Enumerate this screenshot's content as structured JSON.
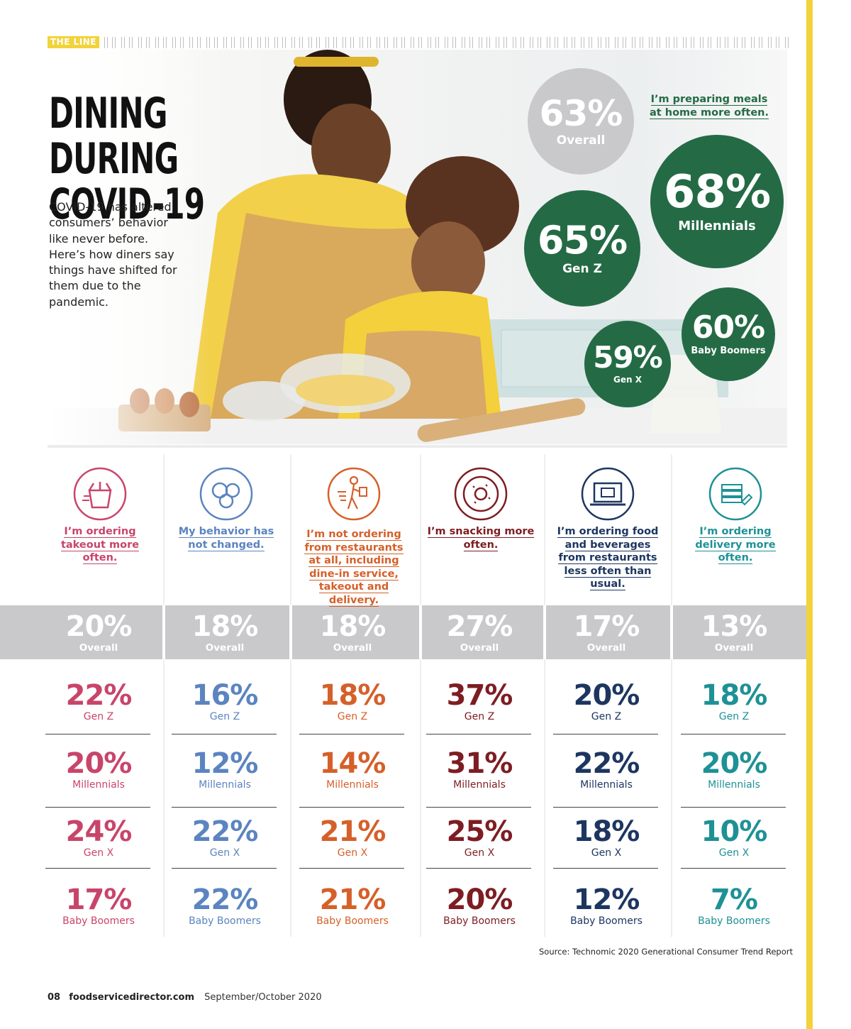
{
  "header": {
    "section_tag": "THE LINE"
  },
  "title": {
    "line1": "DINING DURING",
    "line2": "COVID-19"
  },
  "intro": "COVID-19 has altered consumers’ behavior like never before. Here’s how diners say things have shifted for them due to the pandemic.",
  "preparing_meals": {
    "caption": "I’m preparing meals at home more often.",
    "overall": {
      "pct": "63%",
      "label": "Overall"
    },
    "millennials": {
      "pct": "68%",
      "label": "Millennials"
    },
    "gen_z": {
      "pct": "65%",
      "label": "Gen Z"
    },
    "baby_boomers": {
      "pct": "60%",
      "label": "Baby Boomers"
    },
    "gen_x": {
      "pct": "59%",
      "label": "Gen X"
    }
  },
  "columns": [
    {
      "title": "I’m ordering takeout more often.",
      "icon": "takeout-box-icon",
      "color": "#c8456a",
      "overall": "20%",
      "overall_label": "Overall",
      "rows": [
        {
          "pct": "22%",
          "label": "Gen Z"
        },
        {
          "pct": "20%",
          "label": "Millennials"
        },
        {
          "pct": "24%",
          "label": "Gen X"
        },
        {
          "pct": "17%",
          "label": "Baby Boomers"
        }
      ]
    },
    {
      "title": "My behavior has not changed.",
      "icon": "plate-dishes-icon",
      "color": "#5b84c0",
      "overall": "18%",
      "overall_label": "Overall",
      "rows": [
        {
          "pct": "16%",
          "label": "Gen Z"
        },
        {
          "pct": "12%",
          "label": "Millennials"
        },
        {
          "pct": "22%",
          "label": "Gen X"
        },
        {
          "pct": "22%",
          "label": "Baby Boomers"
        }
      ]
    },
    {
      "title": "I’m not ordering from restaurants at all, including dine-in service, takeout and delivery.",
      "icon": "delivery-person-icon",
      "color": "#d5602a",
      "overall": "18%",
      "overall_label": "Overall",
      "rows": [
        {
          "pct": "18%",
          "label": "Gen Z"
        },
        {
          "pct": "14%",
          "label": "Millennials"
        },
        {
          "pct": "21%",
          "label": "Gen X"
        },
        {
          "pct": "21%",
          "label": "Baby Boomers"
        }
      ]
    },
    {
      "title": "I’m snacking more often.",
      "icon": "donut-icon",
      "color": "#7d1d22",
      "overall": "27%",
      "overall_label": "Overall",
      "rows": [
        {
          "pct": "37%",
          "label": "Gen Z"
        },
        {
          "pct": "31%",
          "label": "Millennials"
        },
        {
          "pct": "25%",
          "label": "Gen X"
        },
        {
          "pct": "20%",
          "label": "Baby Boomers"
        }
      ]
    },
    {
      "title": "I’m ordering food and beverages from restaurants less often than usual.",
      "icon": "laptop-order-icon",
      "color": "#1d3660",
      "overall": "17%",
      "overall_label": "Overall",
      "rows": [
        {
          "pct": "20%",
          "label": "Gen Z"
        },
        {
          "pct": "22%",
          "label": "Millennials"
        },
        {
          "pct": "18%",
          "label": "Gen X"
        },
        {
          "pct": "12%",
          "label": "Baby Boomers"
        }
      ]
    },
    {
      "title": "I’m ordering delivery more often.",
      "icon": "delivery-boxes-icon",
      "color": "#1e9195",
      "overall": "13%",
      "overall_label": "Overall",
      "rows": [
        {
          "pct": "18%",
          "label": "Gen Z"
        },
        {
          "pct": "20%",
          "label": "Millennials"
        },
        {
          "pct": "10%",
          "label": "Gen X"
        },
        {
          "pct": "7%",
          "label": "Baby Boomers"
        }
      ]
    }
  ],
  "source": "Source: Technomic 2020 Generational Consumer Trend Report",
  "footer": {
    "page": "08",
    "site": "foodservicedirector.com",
    "date": "September/October 2020"
  }
}
